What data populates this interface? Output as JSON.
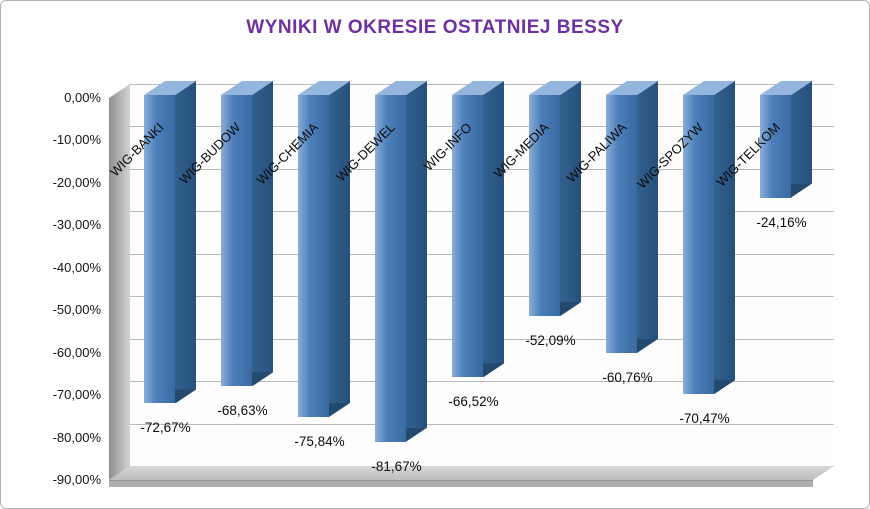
{
  "title": "WYNIKI W OKRESIE OSTATNIEJ BESSY",
  "title_color": "#7030A0",
  "chart_data": {
    "type": "bar",
    "style": "3d-column",
    "title": "WYNIKI W OKRESIE OSTATNIEJ BESSY",
    "categories": [
      "WIG-BANKI",
      "WIG-BUDOW",
      "WIG-CHEMIA",
      "WIG-DEWEL",
      "WIG-INFO",
      "WIG-MEDIA",
      "WIG-PALIWA",
      "WIG-SPOZYW",
      "WIG-TELKOM"
    ],
    "values": [
      -72.67,
      -68.63,
      -75.84,
      -81.67,
      -66.52,
      -52.09,
      -60.76,
      -70.47,
      -24.16
    ],
    "data_labels": [
      "-72,67%",
      "-68,63%",
      "-75,84%",
      "-81,67%",
      "-66,52%",
      "-52,09%",
      "-60,76%",
      "-70,47%",
      "-24,16%"
    ],
    "y_ticks": [
      "0,00%",
      "-10,00%",
      "-20,00%",
      "-30,00%",
      "-40,00%",
      "-50,00%",
      "-60,00%",
      "-70,00%",
      "-80,00%",
      "-90,00%"
    ],
    "y_tick_values": [
      0,
      -10,
      -20,
      -30,
      -40,
      -50,
      -60,
      -70,
      -80,
      -90
    ],
    "ylim": [
      -90,
      0
    ],
    "xlabel": "",
    "ylabel": "",
    "grid": true,
    "legend": false,
    "bar_color": "#4f81bd"
  }
}
